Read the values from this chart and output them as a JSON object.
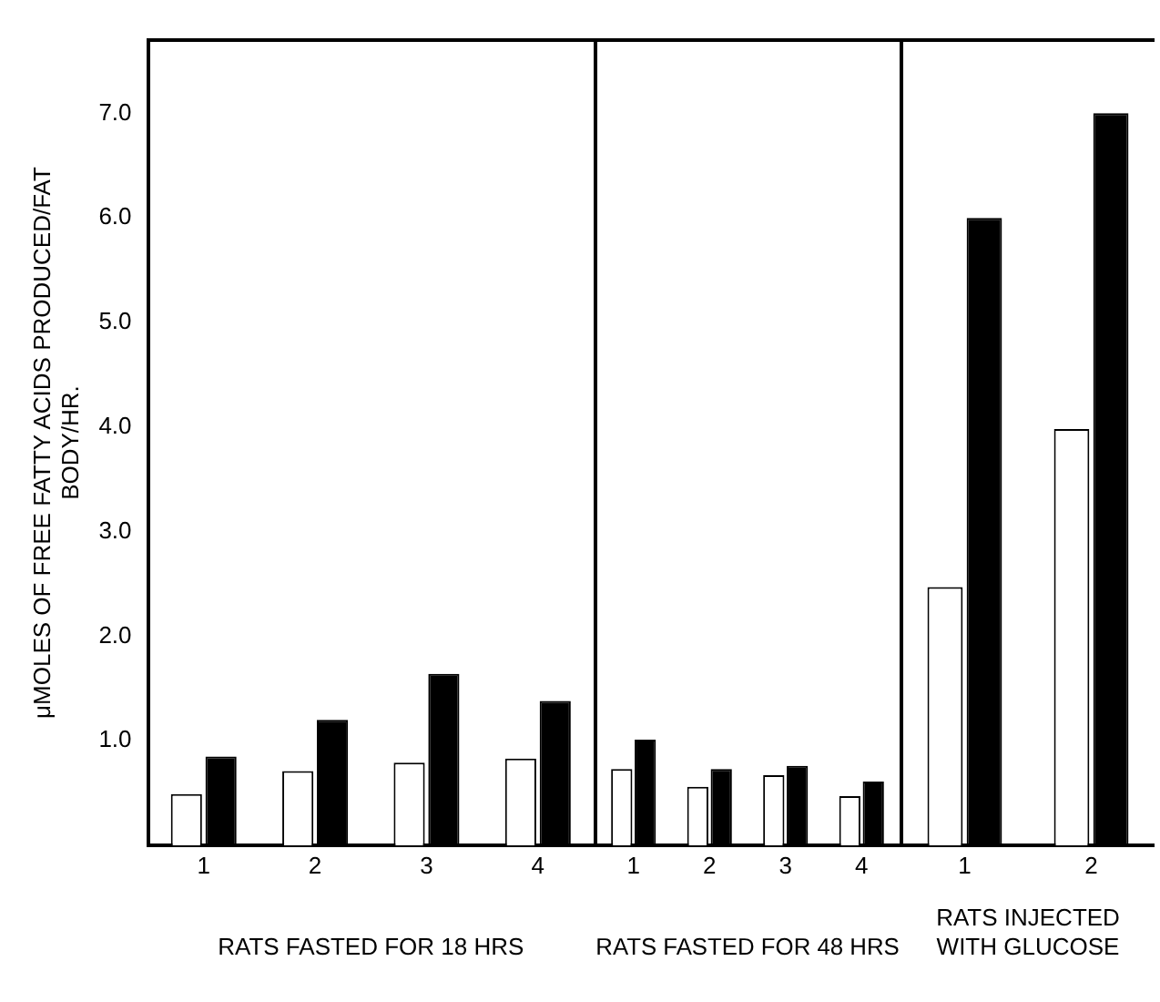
{
  "chart_data": [
    {
      "type": "bar",
      "ylabel": "μMOLES OF FREE FATTY ACIDS PRODUCED/FAT\nBODY/HR.",
      "xlabel": "RATS FASTED FOR 18 HRS",
      "categories": [
        "1",
        "2",
        "3",
        "4"
      ],
      "series": [
        {
          "color": "#ffffff",
          "values": [
            0.49,
            0.71,
            0.79,
            0.83
          ]
        },
        {
          "color": "#000000",
          "values": [
            0.85,
            1.2,
            1.64,
            1.38
          ]
        }
      ],
      "ylim": [
        0,
        7.7
      ],
      "yticks": [
        {
          "value": 1,
          "label": "1.0"
        },
        {
          "value": 2,
          "label": "2.0"
        },
        {
          "value": 3,
          "label": "3.0"
        },
        {
          "value": 4,
          "label": "4.0"
        },
        {
          "value": 5,
          "label": "5.0"
        },
        {
          "value": 6,
          "label": "6.0"
        },
        {
          "value": 7,
          "label": "7.0"
        }
      ],
      "grid": false,
      "legend": false
    },
    {
      "type": "bar",
      "xlabel": "RATS FASTED FOR 48 HRS",
      "categories": [
        "1",
        "2",
        "3",
        "4"
      ],
      "series": [
        {
          "color": "#ffffff",
          "values": [
            0.73,
            0.56,
            0.67,
            0.47
          ]
        },
        {
          "color": "#000000",
          "values": [
            1.01,
            0.73,
            0.76,
            0.61
          ]
        }
      ],
      "ylim": [
        0,
        7.7
      ],
      "yticks": [
        {
          "value": 1,
          "label": null
        },
        {
          "value": 2,
          "label": null
        },
        {
          "value": 3,
          "label": null
        },
        {
          "value": 4,
          "label": null
        },
        {
          "value": 5,
          "label": null
        },
        {
          "value": 6,
          "label": null
        },
        {
          "value": 7,
          "label": null
        }
      ],
      "tick_labels": "x",
      "grid": false,
      "legend": false
    },
    {
      "type": "bar",
      "xlabel": "RATS INJECTED\nWITH GLUCOSE",
      "categories": [
        "1",
        "2"
      ],
      "series": [
        {
          "color": "#ffffff",
          "values": [
            2.47,
            3.98
          ]
        },
        {
          "color": "#000000",
          "values": [
            6.0,
            7.0
          ]
        }
      ],
      "ylim": [
        0,
        7.7
      ],
      "yticks": [
        {
          "value": 1,
          "label": null
        },
        {
          "value": 2,
          "label": null
        },
        {
          "value": 3,
          "label": null
        },
        {
          "value": 4,
          "label": null
        },
        {
          "value": 5,
          "label": null
        },
        {
          "value": 6,
          "label": null
        },
        {
          "value": 7,
          "label": null
        }
      ],
      "tick_labels": "x",
      "grid": false,
      "legend": false
    }
  ]
}
